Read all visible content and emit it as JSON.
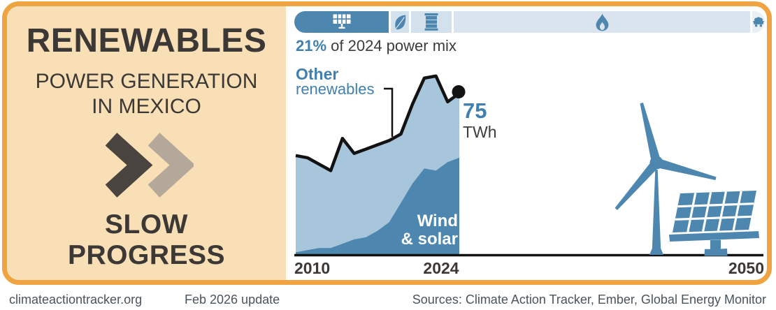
{
  "colors": {
    "frame_orange": "#f0a441",
    "panel_tan": "#f8dfb5",
    "ink_dark": "#3b3836",
    "ink_body": "#3c3c3c",
    "chevron_dark": "#4a4440",
    "chevron_taupe": "#b4a89a",
    "blue_accent": "#4d86ae",
    "blue_text": "#4180ae",
    "area_light": "#a7c5db",
    "bar_light": "#d3e1ec",
    "bar_gas": "#d9e4ee",
    "bar_lighter": "#e9eff5",
    "line_black": "#121212",
    "footer_gray": "#4a545c"
  },
  "left_panel": {
    "title": "RENEWABLES",
    "subtitle_line1": "POWER GENERATION",
    "subtitle_line2": "IN MEXICO",
    "verdict_line1": "SLOW",
    "verdict_line2": "PROGRESS"
  },
  "power_mix_bar": {
    "caption": {
      "value": "21%",
      "text": "of 2024 power mix"
    },
    "segments": [
      {
        "name": "renewables",
        "icon": "solar-panel-icon",
        "share_of_2024_power_mix_pct": 21,
        "active": true
      },
      {
        "name": "bioenergy",
        "icon": "leaf-icon",
        "active": false
      },
      {
        "name": "oil",
        "icon": "oil-barrel-icon",
        "active": false
      },
      {
        "name": "gas",
        "icon": "gas-flame-icon",
        "active": false
      },
      {
        "name": "coal",
        "icon": "coal-cart-icon",
        "active": false
      }
    ]
  },
  "chart_data": {
    "type": "area",
    "title": "Renewables power generation in Mexico",
    "unit": "TWh",
    "x": [
      2010,
      2011,
      2012,
      2013,
      2014,
      2015,
      2016,
      2017,
      2018,
      2019,
      2020,
      2021,
      2022,
      2023,
      2024
    ],
    "series": [
      {
        "name": "Wind & solar",
        "values": [
          1,
          2,
          3,
          3,
          5,
          7,
          8,
          11,
          15,
          24,
          33,
          40,
          39,
          43,
          45
        ]
      },
      {
        "name": "Other renewables",
        "values": [
          45,
          43,
          39,
          36,
          49,
          40,
          41,
          40,
          38,
          32,
          37,
          42,
          44,
          28,
          30
        ]
      }
    ],
    "total_renewables": [
      46,
      45,
      42,
      39,
      54,
      47,
      49,
      51,
      53,
      56,
      70,
      82,
      83,
      71,
      75
    ],
    "end_label": {
      "value": "75",
      "unit": "TWh"
    },
    "x_ticks": [
      "2010",
      "2024",
      "2050"
    ],
    "xlim": [
      2010,
      2050
    ],
    "ylim": [
      0,
      90
    ],
    "grid": false,
    "annotations": {
      "other_label_line1": "Other",
      "other_label_line2": "renewables",
      "ws_label_line1": "Wind",
      "ws_label_line2": "& solar"
    }
  },
  "footer": {
    "site": "climateactiontracker.org",
    "update": "Feb 2026 update",
    "sources": "Sources: Climate Action Tracker, Ember, Global Energy Monitor"
  }
}
